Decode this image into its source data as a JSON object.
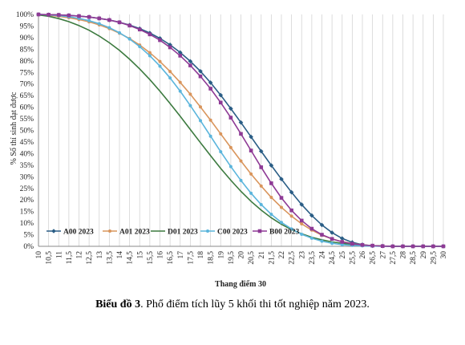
{
  "chart_data": {
    "type": "line",
    "xlabel": "Thang điểm 30",
    "ylabel": "% Số thí sinh đạt được",
    "x": [
      10,
      10.5,
      11,
      11.5,
      12,
      12.5,
      13,
      13.5,
      14,
      14.5,
      15,
      15.5,
      16,
      16.5,
      17,
      17.5,
      18,
      18.5,
      19,
      19.5,
      20,
      20.5,
      21,
      21.5,
      22,
      22.5,
      23,
      23.5,
      24,
      24.5,
      25,
      25.5,
      26,
      26.5,
      27,
      27.5,
      28,
      28.5,
      29,
      29.5,
      30
    ],
    "x_tick_labels": [
      "10",
      "10,5",
      "11",
      "11,5",
      "12",
      "12,5",
      "13",
      "13,5",
      "14",
      "14,5",
      "15",
      "15,5",
      "16",
      "16,5",
      "17",
      "17,5",
      "18",
      "18,5",
      "19",
      "19,5",
      "20",
      "20,5",
      "21",
      "21,5",
      "22",
      "22,5",
      "23",
      "23,5",
      "24",
      "24,5",
      "25",
      "25,5",
      "26",
      "26,5",
      "27",
      "27,5",
      "28",
      "28,5",
      "29",
      "29,5",
      "30"
    ],
    "y_tick_labels": [
      "0%",
      "5%",
      "10%",
      "15%",
      "20%",
      "25%",
      "30%",
      "35%",
      "40%",
      "45%",
      "50%",
      "55%",
      "60%",
      "65%",
      "70%",
      "75%",
      "80%",
      "85%",
      "90%",
      "95%",
      "100%"
    ],
    "ylim": [
      0,
      100
    ],
    "xlim": [
      10,
      30
    ],
    "grid": "vertical",
    "legend_position": "bottom-left",
    "series": [
      {
        "name": "A00 2023",
        "color": "#2a5d85",
        "marker": "diamond",
        "values": [
          100,
          99.9,
          99.8,
          99.6,
          99.3,
          98.9,
          98.3,
          97.6,
          96.6,
          95.4,
          93.9,
          92,
          89.7,
          86.9,
          83.6,
          79.8,
          75.5,
          70.6,
          65.2,
          59.4,
          53.4,
          47.2,
          41,
          34.9,
          29,
          23.3,
          18,
          13.3,
          9.2,
          5.9,
          3.4,
          1.7,
          0.7,
          0.2,
          0.1,
          0,
          0,
          0,
          0,
          0,
          0
        ]
      },
      {
        "name": "A01 2023",
        "color": "#d9955c",
        "marker": "circle",
        "values": [
          99.9,
          99.6,
          99.2,
          98.6,
          97.8,
          96.8,
          95.5,
          93.9,
          91.9,
          89.6,
          86.8,
          83.5,
          79.7,
          75.4,
          70.7,
          65.6,
          60.1,
          54.4,
          48.5,
          42.6,
          36.8,
          31.2,
          26,
          21.1,
          16.8,
          13,
          9.7,
          7,
          4.8,
          3.2,
          2,
          1.2,
          0.6,
          0.3,
          0.1,
          0,
          0,
          0,
          0,
          0,
          0
        ]
      },
      {
        "name": "D01 2023",
        "color": "#3c7a3f",
        "marker": "none",
        "values": [
          99.8,
          99.2,
          98.2,
          96.9,
          95.2,
          93.2,
          90.7,
          87.8,
          84.5,
          80.7,
          76.5,
          71.9,
          66.9,
          61.6,
          56.1,
          50.4,
          44.7,
          39.1,
          33.6,
          28.5,
          23.7,
          19.4,
          15.6,
          12.3,
          9.5,
          7.2,
          5.4,
          3.9,
          2.8,
          1.9,
          1.3,
          0.8,
          0.5,
          0.3,
          0.1,
          0,
          0,
          0,
          0,
          0,
          0
        ]
      },
      {
        "name": "C00 2023",
        "color": "#5bb5dc",
        "marker": "circle",
        "values": [
          100,
          99.8,
          99.5,
          99,
          98.3,
          97.3,
          96,
          94.3,
          92.1,
          89.4,
          86.1,
          82.2,
          77.7,
          72.6,
          66.9,
          60.7,
          54.2,
          47.5,
          40.8,
          34.4,
          28.4,
          22.9,
          18,
          13.8,
          10.3,
          7.5,
          5.2,
          3.5,
          2.2,
          1.3,
          0.7,
          0.4,
          0.2,
          0.1,
          0,
          0,
          0,
          0,
          0,
          0,
          0
        ]
      },
      {
        "name": "B00 2023",
        "color": "#8e3a95",
        "marker": "square",
        "values": [
          100,
          99.9,
          99.8,
          99.6,
          99.3,
          98.9,
          98.3,
          97.6,
          96.6,
          95.2,
          93.5,
          91.4,
          88.9,
          85.8,
          82.2,
          78,
          73.3,
          68,
          62,
          55.5,
          48.5,
          41.3,
          34.1,
          27.2,
          20.9,
          15.5,
          11.1,
          7.6,
          5,
          3.2,
          1.9,
          1.1,
          0.6,
          0.3,
          0.1,
          0,
          0,
          0,
          0,
          0,
          0
        ]
      }
    ]
  },
  "caption": {
    "bold": "Biểu đồ 3",
    "text": ". Phổ điểm tích lũy 5 khối thi tốt nghiệp năm 2023."
  }
}
